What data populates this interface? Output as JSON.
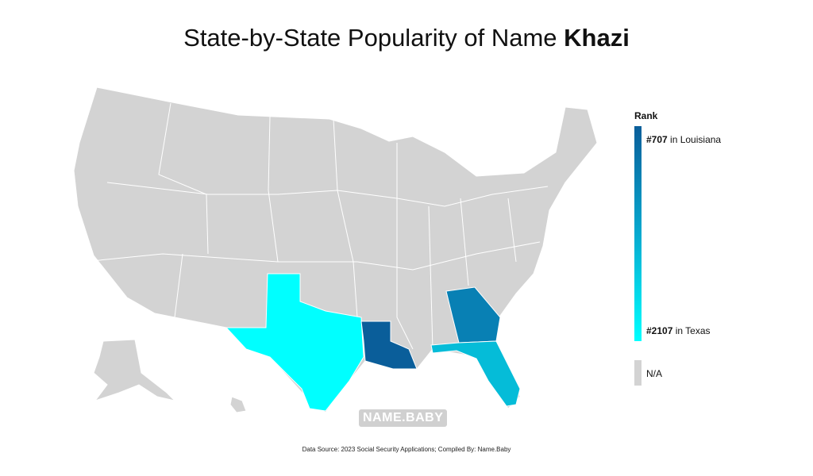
{
  "header": {
    "title": "State-by-State Popularity of Name ",
    "name": "Khazi"
  },
  "legend": {
    "title": "Rank",
    "top": {
      "rank": "#707",
      "text": " in Louisiana"
    },
    "bottom": {
      "rank": "#2107",
      "text": " in Texas"
    },
    "na": "N/A"
  },
  "watermark": "NAME.BABY",
  "footer": "Data Source: 2023 Social Security Applications; Compiled By: Name.Baby"
}
